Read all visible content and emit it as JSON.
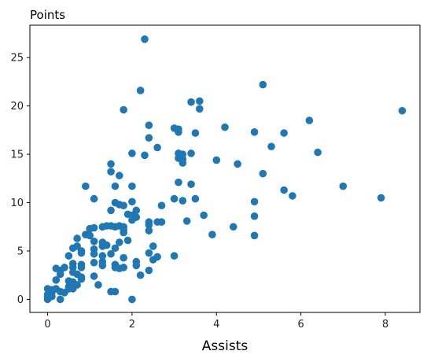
{
  "chart_data": {
    "type": "scatter",
    "title": "Points",
    "xlabel": "Assists",
    "ylabel": "",
    "xlim": [
      -0.42,
      8.82
    ],
    "ylim": [
      -1.35,
      28.35
    ],
    "xticks": [
      0,
      2,
      4,
      6,
      8
    ],
    "yticks": [
      0,
      5,
      10,
      15,
      20,
      25
    ],
    "grid": false,
    "marker_color": "#1f77b4",
    "series": [
      {
        "points": [
          [
            2.3,
            26.9
          ],
          [
            2.2,
            21.6
          ],
          [
            1.8,
            19.6
          ],
          [
            3.4,
            20.4
          ],
          [
            3.6,
            20.5
          ],
          [
            3.6,
            19.7
          ],
          [
            5.1,
            22.2
          ],
          [
            8.4,
            19.5
          ],
          [
            6.2,
            18.5
          ],
          [
            2.4,
            18.0
          ],
          [
            2.4,
            16.7
          ],
          [
            3.0,
            17.7
          ],
          [
            3.1,
            17.6
          ],
          [
            3.1,
            17.3
          ],
          [
            3.5,
            17.2
          ],
          [
            4.2,
            17.8
          ],
          [
            4.9,
            17.3
          ],
          [
            5.6,
            17.2
          ],
          [
            5.3,
            15.8
          ],
          [
            6.4,
            15.2
          ],
          [
            2.6,
            15.7
          ],
          [
            2.0,
            15.1
          ],
          [
            2.3,
            14.9
          ],
          [
            3.1,
            15.1
          ],
          [
            3.2,
            15.0
          ],
          [
            3.4,
            15.1
          ],
          [
            3.1,
            14.6
          ],
          [
            3.2,
            14.5
          ],
          [
            3.2,
            14.1
          ],
          [
            4.0,
            14.4
          ],
          [
            4.5,
            14.0
          ],
          [
            1.5,
            14.0
          ],
          [
            1.5,
            13.2
          ],
          [
            1.7,
            12.8
          ],
          [
            5.1,
            13.0
          ],
          [
            0.9,
            11.7
          ],
          [
            1.6,
            11.7
          ],
          [
            2.0,
            11.7
          ],
          [
            3.1,
            12.1
          ],
          [
            3.4,
            11.9
          ],
          [
            7.0,
            11.7
          ],
          [
            5.6,
            11.3
          ],
          [
            5.8,
            10.7
          ],
          [
            7.9,
            10.5
          ],
          [
            1.1,
            10.4
          ],
          [
            1.6,
            10.0
          ],
          [
            1.7,
            9.8
          ],
          [
            1.8,
            9.7
          ],
          [
            2.0,
            10.1
          ],
          [
            3.0,
            10.4
          ],
          [
            3.2,
            10.2
          ],
          [
            3.5,
            10.4
          ],
          [
            4.9,
            10.1
          ],
          [
            2.7,
            9.7
          ],
          [
            1.5,
            9.2
          ],
          [
            2.1,
            9.2
          ],
          [
            1.9,
            8.8
          ],
          [
            2.0,
            8.7
          ],
          [
            2.1,
            8.5
          ],
          [
            2.0,
            8.2
          ],
          [
            3.7,
            8.7
          ],
          [
            4.9,
            8.6
          ],
          [
            2.4,
            8.0
          ],
          [
            2.6,
            8.0
          ],
          [
            2.7,
            8.0
          ],
          [
            3.3,
            8.1
          ],
          [
            2.4,
            7.7
          ],
          [
            1.3,
            7.5
          ],
          [
            1.4,
            7.6
          ],
          [
            1.5,
            7.6
          ],
          [
            1.6,
            7.5
          ],
          [
            1.7,
            7.6
          ],
          [
            1.8,
            7.5
          ],
          [
            1.0,
            7.3
          ],
          [
            1.1,
            7.4
          ],
          [
            1.8,
            7.2
          ],
          [
            1.8,
            6.9
          ],
          [
            2.4,
            7.1
          ],
          [
            0.9,
            6.7
          ],
          [
            1.0,
            6.6
          ],
          [
            0.7,
            6.3
          ],
          [
            4.4,
            7.5
          ],
          [
            3.9,
            6.7
          ],
          [
            4.9,
            6.6
          ],
          [
            1.1,
            6.0
          ],
          [
            1.3,
            5.9
          ],
          [
            1.7,
            5.9
          ],
          [
            1.9,
            6.1
          ],
          [
            0.7,
            5.5
          ],
          [
            0.6,
            5.3
          ],
          [
            0.8,
            5.0
          ],
          [
            1.1,
            5.2
          ],
          [
            1.1,
            4.7
          ],
          [
            1.3,
            5.5
          ],
          [
            1.4,
            5.6
          ],
          [
            1.6,
            5.3
          ],
          [
            2.5,
            5.5
          ],
          [
            0.5,
            4.5
          ],
          [
            0.8,
            4.8
          ],
          [
            1.3,
            4.5
          ],
          [
            1.5,
            4.7
          ],
          [
            2.4,
            4.8
          ],
          [
            2.5,
            4.1
          ],
          [
            2.6,
            4.4
          ],
          [
            3.0,
            4.5
          ],
          [
            1.8,
            4.3
          ],
          [
            0.4,
            3.3
          ],
          [
            0.2,
            3.2
          ],
          [
            0.3,
            3.0
          ],
          [
            0.6,
            3.3
          ],
          [
            0.6,
            3.7
          ],
          [
            0.8,
            3.6
          ],
          [
            0.8,
            3.3
          ],
          [
            1.1,
            3.8
          ],
          [
            1.3,
            3.9
          ],
          [
            1.3,
            3.5
          ],
          [
            1.6,
            3.6
          ],
          [
            1.6,
            3.3
          ],
          [
            1.7,
            3.2
          ],
          [
            1.8,
            3.3
          ],
          [
            2.1,
            3.9
          ],
          [
            2.1,
            3.5
          ],
          [
            2.4,
            3.0
          ],
          [
            0.3,
            2.6
          ],
          [
            0.6,
            2.8
          ],
          [
            0.7,
            2.6
          ],
          [
            0.8,
            2.3
          ],
          [
            1.1,
            2.4
          ],
          [
            2.2,
            2.5
          ],
          [
            0.2,
            2.0
          ],
          [
            0.5,
            1.9
          ],
          [
            0.6,
            1.8
          ],
          [
            0.7,
            1.5
          ],
          [
            0.8,
            2.1
          ],
          [
            0.5,
            1.3
          ],
          [
            0.6,
            1.1
          ],
          [
            1.2,
            1.5
          ],
          [
            0.0,
            1.1
          ],
          [
            0.1,
            1.0
          ],
          [
            0.2,
            1.1
          ],
          [
            0.3,
            0.8
          ],
          [
            0.4,
            0.7
          ],
          [
            0.5,
            1.1
          ],
          [
            0.1,
            0.7
          ],
          [
            0.0,
            0.5
          ],
          [
            0.0,
            0.3
          ],
          [
            0.1,
            0.3
          ],
          [
            0.0,
            0.0
          ],
          [
            0.3,
            0.0
          ],
          [
            1.5,
            0.8
          ],
          [
            1.6,
            0.8
          ],
          [
            2.0,
            0.0
          ]
        ]
      }
    ]
  }
}
